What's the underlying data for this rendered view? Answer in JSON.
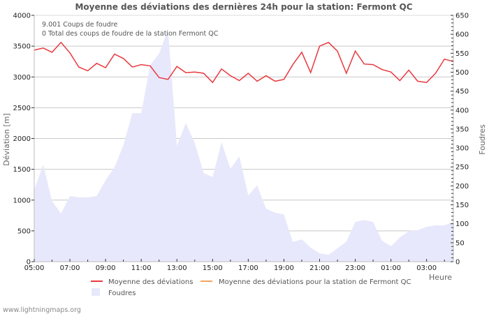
{
  "chart_data": {
    "type": "line",
    "title": "Moyenne des déviations des dernières 24h pour la station: Fermont QC",
    "xlabel": "Heure",
    "ylabel": "Déviation  [m]",
    "y2label": "Foudres",
    "ylim": [
      0,
      4000
    ],
    "y2lim": [
      0,
      650
    ],
    "yticks": [
      0,
      500,
      1000,
      1500,
      2000,
      2500,
      3000,
      3500,
      4000
    ],
    "y2ticks": [
      0,
      50,
      100,
      150,
      200,
      250,
      300,
      350,
      400,
      450,
      500,
      550,
      600,
      650
    ],
    "xticks": [
      "05:00",
      "07:00",
      "09:00",
      "11:00",
      "13:00",
      "15:00",
      "17:00",
      "19:00",
      "21:00",
      "23:00",
      "01:00",
      "03:00"
    ],
    "grid": true,
    "legend_position": "bottom",
    "annotations": [
      "9.001  Coups de foudre",
      "0 Total des coups de foudre de la station Fermont QC"
    ],
    "x": [
      "05:00",
      "05:30",
      "06:00",
      "06:30",
      "07:00",
      "07:30",
      "08:00",
      "08:30",
      "09:00",
      "09:30",
      "10:00",
      "10:30",
      "11:00",
      "11:30",
      "12:00",
      "12:30",
      "13:00",
      "13:30",
      "14:00",
      "14:30",
      "15:00",
      "15:30",
      "16:00",
      "16:30",
      "17:00",
      "17:30",
      "18:00",
      "18:30",
      "19:00",
      "19:30",
      "20:00",
      "20:30",
      "21:00",
      "21:30",
      "22:00",
      "22:30",
      "23:00",
      "23:30",
      "00:00",
      "00:30",
      "01:00",
      "01:30",
      "02:00",
      "02:30",
      "03:00",
      "03:30",
      "04:00",
      "04:30"
    ],
    "series": [
      {
        "name": "Moyenne des déviations",
        "type": "line",
        "axis": "left",
        "color": "#e8393f",
        "values": [
          3435,
          3470,
          3400,
          3560,
          3390,
          3160,
          3100,
          3220,
          3150,
          3370,
          3300,
          3160,
          3200,
          3180,
          2990,
          2960,
          3170,
          3070,
          3080,
          3060,
          2910,
          3130,
          3020,
          2940,
          3060,
          2930,
          3020,
          2930,
          2960,
          3200,
          3400,
          3070,
          3500,
          3560,
          3420,
          3060,
          3420,
          3210,
          3200,
          3120,
          3080,
          2940,
          3110,
          2930,
          2910,
          3060,
          3290,
          3250
        ]
      },
      {
        "name": "Moyenne des déviations pour la station de Fermont QC",
        "type": "line",
        "axis": "left",
        "color": "#f4a460",
        "values": []
      },
      {
        "name": "Foudres",
        "type": "area",
        "axis": "right",
        "color": "#e8e8fc",
        "values": [
          190,
          256,
          160,
          127,
          173,
          170,
          170,
          173,
          215,
          249,
          308,
          392,
          392,
          519,
          549,
          613,
          306,
          366,
          313,
          234,
          223,
          315,
          245,
          278,
          175,
          201,
          140,
          129,
          125,
          52,
          59,
          37,
          22,
          18,
          35,
          53,
          105,
          110,
          105,
          55,
          41,
          64,
          81,
          83,
          92,
          96,
          96,
          105
        ]
      }
    ]
  },
  "legend": {
    "items": [
      {
        "label": "Moyenne des déviations",
        "color": "#e8393f"
      },
      {
        "label": "Moyenne des déviations pour la station de Fermont QC",
        "color": "#f4a460"
      },
      {
        "label": "Foudres",
        "color": "#e8e8fc"
      }
    ]
  },
  "footer": {
    "credit": "www.lightningmaps.org"
  }
}
